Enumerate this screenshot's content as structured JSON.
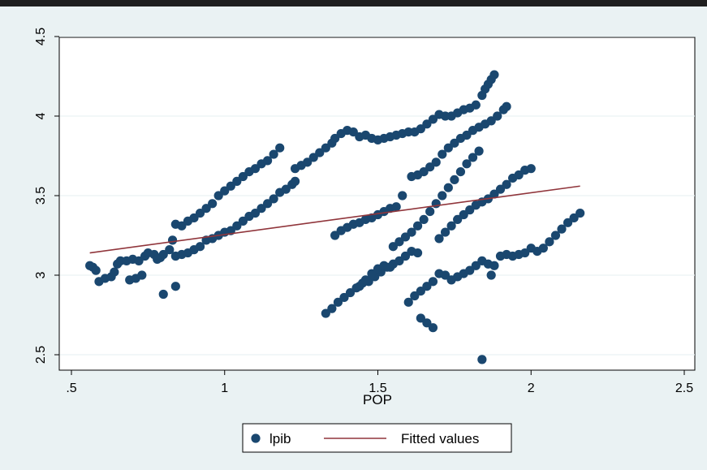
{
  "chart_data": {
    "type": "scatter",
    "title": "",
    "xlabel": "POP",
    "ylabel": "",
    "xlim": [
      0.5,
      2.5
    ],
    "ylim": [
      2.5,
      4.5
    ],
    "x_ticks": [
      0.5,
      1,
      1.5,
      2,
      2.5
    ],
    "x_tick_labels": [
      ".5",
      "1",
      "1.5",
      "2",
      "2.5"
    ],
    "y_ticks": [
      2.5,
      3,
      3.5,
      4,
      4.5
    ],
    "y_tick_labels": [
      "2.5",
      "3",
      "3.5",
      "4",
      "4.5"
    ],
    "grid": true,
    "legend_position": "bottom",
    "series": [
      {
        "name": "lpib",
        "kind": "scatter",
        "color": "#1a476f",
        "points": [
          [
            0.56,
            3.06
          ],
          [
            0.57,
            3.05
          ],
          [
            0.58,
            3.03
          ],
          [
            0.59,
            2.96
          ],
          [
            0.61,
            2.98
          ],
          [
            0.63,
            2.99
          ],
          [
            0.64,
            3.02
          ],
          [
            0.65,
            3.07
          ],
          [
            0.66,
            3.09
          ],
          [
            0.68,
            3.09
          ],
          [
            0.7,
            3.1
          ],
          [
            0.72,
            3.09
          ],
          [
            0.74,
            3.12
          ],
          [
            0.75,
            3.14
          ],
          [
            0.77,
            3.13
          ],
          [
            0.79,
            3.11
          ],
          [
            0.8,
            3.13
          ],
          [
            0.82,
            3.16
          ],
          [
            0.69,
            2.97
          ],
          [
            0.71,
            2.98
          ],
          [
            0.73,
            3.0
          ],
          [
            0.78,
            3.1
          ],
          [
            0.8,
            2.88
          ],
          [
            0.84,
            2.93
          ],
          [
            0.83,
            3.22
          ],
          [
            0.84,
            3.32
          ],
          [
            0.86,
            3.31
          ],
          [
            0.88,
            3.34
          ],
          [
            0.9,
            3.36
          ],
          [
            0.92,
            3.39
          ],
          [
            0.94,
            3.42
          ],
          [
            0.96,
            3.45
          ],
          [
            0.98,
            3.5
          ],
          [
            1.0,
            3.53
          ],
          [
            1.02,
            3.56
          ],
          [
            1.04,
            3.59
          ],
          [
            1.06,
            3.62
          ],
          [
            1.08,
            3.65
          ],
          [
            1.1,
            3.67
          ],
          [
            1.12,
            3.7
          ],
          [
            1.14,
            3.72
          ],
          [
            1.16,
            3.76
          ],
          [
            1.18,
            3.8
          ],
          [
            0.84,
            3.12
          ],
          [
            0.86,
            3.13
          ],
          [
            0.88,
            3.14
          ],
          [
            0.9,
            3.16
          ],
          [
            0.92,
            3.18
          ],
          [
            0.94,
            3.22
          ],
          [
            0.96,
            3.23
          ],
          [
            0.98,
            3.25
          ],
          [
            1.0,
            3.27
          ],
          [
            1.02,
            3.28
          ],
          [
            1.04,
            3.31
          ],
          [
            1.06,
            3.34
          ],
          [
            1.08,
            3.37
          ],
          [
            1.1,
            3.39
          ],
          [
            1.12,
            3.42
          ],
          [
            1.14,
            3.45
          ],
          [
            1.16,
            3.48
          ],
          [
            1.18,
            3.52
          ],
          [
            1.2,
            3.54
          ],
          [
            1.22,
            3.57
          ],
          [
            1.23,
            3.59
          ],
          [
            1.23,
            3.67
          ],
          [
            1.25,
            3.69
          ],
          [
            1.27,
            3.71
          ],
          [
            1.29,
            3.74
          ],
          [
            1.31,
            3.77
          ],
          [
            1.33,
            3.8
          ],
          [
            1.35,
            3.83
          ],
          [
            1.36,
            3.86
          ],
          [
            1.38,
            3.89
          ],
          [
            1.4,
            3.91
          ],
          [
            1.42,
            3.9
          ],
          [
            1.44,
            3.87
          ],
          [
            1.46,
            3.88
          ],
          [
            1.48,
            3.86
          ],
          [
            1.5,
            3.85
          ],
          [
            1.52,
            3.86
          ],
          [
            1.54,
            3.87
          ],
          [
            1.56,
            3.88
          ],
          [
            1.58,
            3.89
          ],
          [
            1.6,
            3.9
          ],
          [
            1.62,
            3.9
          ],
          [
            1.64,
            3.92
          ],
          [
            1.66,
            3.95
          ],
          [
            1.68,
            3.98
          ],
          [
            1.7,
            4.01
          ],
          [
            1.72,
            4.0
          ],
          [
            1.74,
            4.0
          ],
          [
            1.76,
            4.02
          ],
          [
            1.78,
            4.04
          ],
          [
            1.8,
            4.05
          ],
          [
            1.82,
            4.07
          ],
          [
            1.84,
            4.13
          ],
          [
            1.85,
            4.17
          ],
          [
            1.86,
            4.2
          ],
          [
            1.87,
            4.23
          ],
          [
            1.88,
            4.26
          ],
          [
            1.61,
            3.62
          ],
          [
            1.63,
            3.63
          ],
          [
            1.65,
            3.65
          ],
          [
            1.67,
            3.68
          ],
          [
            1.69,
            3.71
          ],
          [
            1.71,
            3.76
          ],
          [
            1.73,
            3.8
          ],
          [
            1.75,
            3.83
          ],
          [
            1.77,
            3.86
          ],
          [
            1.79,
            3.88
          ],
          [
            1.81,
            3.91
          ],
          [
            1.83,
            3.93
          ],
          [
            1.85,
            3.95
          ],
          [
            1.87,
            3.97
          ],
          [
            1.89,
            4.0
          ],
          [
            1.91,
            4.04
          ],
          [
            1.92,
            4.06
          ],
          [
            1.36,
            3.25
          ],
          [
            1.38,
            3.28
          ],
          [
            1.4,
            3.3
          ],
          [
            1.42,
            3.32
          ],
          [
            1.44,
            3.33
          ],
          [
            1.46,
            3.35
          ],
          [
            1.48,
            3.36
          ],
          [
            1.5,
            3.38
          ],
          [
            1.52,
            3.4
          ],
          [
            1.54,
            3.42
          ],
          [
            1.56,
            3.43
          ],
          [
            1.58,
            3.5
          ],
          [
            1.55,
            3.18
          ],
          [
            1.57,
            3.21
          ],
          [
            1.59,
            3.24
          ],
          [
            1.61,
            3.27
          ],
          [
            1.63,
            3.31
          ],
          [
            1.65,
            3.35
          ],
          [
            1.67,
            3.4
          ],
          [
            1.69,
            3.45
          ],
          [
            1.71,
            3.5
          ],
          [
            1.73,
            3.55
          ],
          [
            1.75,
            3.6
          ],
          [
            1.77,
            3.65
          ],
          [
            1.79,
            3.7
          ],
          [
            1.81,
            3.74
          ],
          [
            1.83,
            3.78
          ],
          [
            1.33,
            2.76
          ],
          [
            1.35,
            2.79
          ],
          [
            1.37,
            2.83
          ],
          [
            1.39,
            2.86
          ],
          [
            1.41,
            2.89
          ],
          [
            1.43,
            2.92
          ],
          [
            1.45,
            2.95
          ],
          [
            1.47,
            2.96
          ],
          [
            1.49,
            2.99
          ],
          [
            1.51,
            3.02
          ],
          [
            1.53,
            3.05
          ],
          [
            1.55,
            3.07
          ],
          [
            1.57,
            3.09
          ],
          [
            1.59,
            3.12
          ],
          [
            1.61,
            3.15
          ],
          [
            1.63,
            3.14
          ],
          [
            1.44,
            2.93
          ],
          [
            1.46,
            2.97
          ],
          [
            1.48,
            3.01
          ],
          [
            1.5,
            3.04
          ],
          [
            1.52,
            3.06
          ],
          [
            1.54,
            3.05
          ],
          [
            1.6,
            2.83
          ],
          [
            1.62,
            2.87
          ],
          [
            1.64,
            2.9
          ],
          [
            1.66,
            2.93
          ],
          [
            1.68,
            2.96
          ],
          [
            1.7,
            3.01
          ],
          [
            1.72,
            3.0
          ],
          [
            1.74,
            2.97
          ],
          [
            1.76,
            2.99
          ],
          [
            1.78,
            3.01
          ],
          [
            1.8,
            3.03
          ],
          [
            1.82,
            3.06
          ],
          [
            1.84,
            3.09
          ],
          [
            1.86,
            3.07
          ],
          [
            1.87,
            3.0
          ],
          [
            1.88,
            3.06
          ],
          [
            1.9,
            3.12
          ],
          [
            1.92,
            3.13
          ],
          [
            1.94,
            3.12
          ],
          [
            1.96,
            3.13
          ],
          [
            1.98,
            3.14
          ],
          [
            2.0,
            3.17
          ],
          [
            2.02,
            3.15
          ],
          [
            2.04,
            3.17
          ],
          [
            2.06,
            3.21
          ],
          [
            2.08,
            3.25
          ],
          [
            2.1,
            3.29
          ],
          [
            2.12,
            3.33
          ],
          [
            2.14,
            3.36
          ],
          [
            2.16,
            3.39
          ],
          [
            1.64,
            2.73
          ],
          [
            1.66,
            2.7
          ],
          [
            1.68,
            2.67
          ],
          [
            1.7,
            3.23
          ],
          [
            1.72,
            3.27
          ],
          [
            1.74,
            3.31
          ],
          [
            1.76,
            3.35
          ],
          [
            1.78,
            3.38
          ],
          [
            1.8,
            3.41
          ],
          [
            1.82,
            3.44
          ],
          [
            1.84,
            3.46
          ],
          [
            1.86,
            3.48
          ],
          [
            1.88,
            3.51
          ],
          [
            1.9,
            3.54
          ],
          [
            1.92,
            3.57
          ],
          [
            1.94,
            3.61
          ],
          [
            1.96,
            3.63
          ],
          [
            1.98,
            3.66
          ],
          [
            2.0,
            3.67
          ],
          [
            1.84,
            2.47
          ]
        ]
      },
      {
        "name": "Fitted values",
        "kind": "line",
        "color": "#90353b",
        "points": [
          [
            0.56,
            3.14
          ],
          [
            2.16,
            3.56
          ]
        ]
      }
    ]
  },
  "legend": {
    "items": [
      {
        "label": "lpib",
        "marker": "circle",
        "color": "#1a476f"
      },
      {
        "label": "Fitted values",
        "marker": "line",
        "color": "#90353b"
      }
    ]
  },
  "colors": {
    "outer_background": "#eaf2f3",
    "plot_background": "#ffffff",
    "top_bar": "#1f1f1f",
    "grid": "#eaf2f3"
  }
}
